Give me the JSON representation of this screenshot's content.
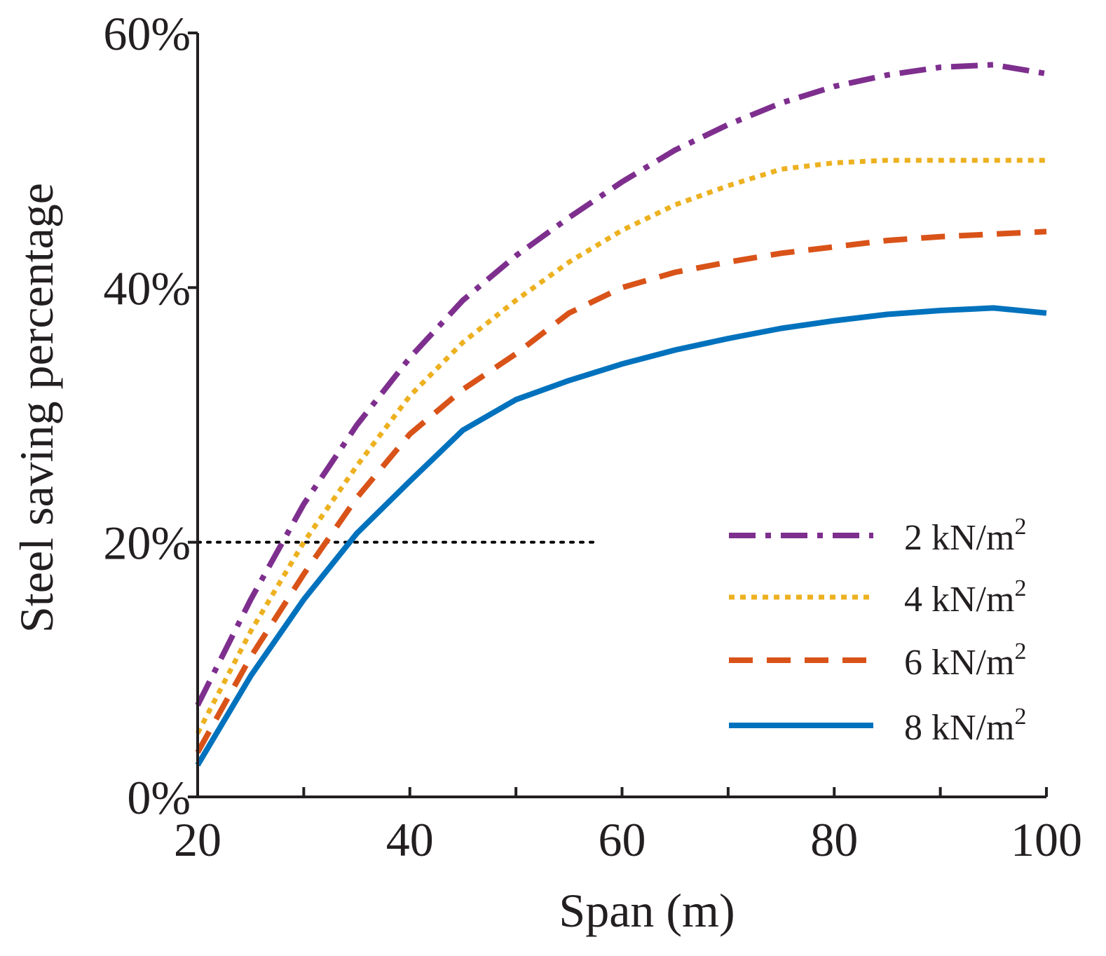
{
  "chart_data": {
    "type": "line",
    "xlabel": "Span (m)",
    "ylabel": "Steel saving percentage",
    "xlim": [
      20,
      100
    ],
    "ylim": [
      0,
      0.6
    ],
    "xticks": [
      20,
      40,
      60,
      80,
      100
    ],
    "xtick_labels": [
      "20",
      "40",
      "60",
      "80",
      "100"
    ],
    "yticks": [
      0,
      0.2,
      0.4,
      0.6
    ],
    "ytick_labels": [
      "0%",
      "20%",
      "40%",
      "60%"
    ],
    "x_minor_ticks": [
      30,
      50,
      70,
      90
    ],
    "grid": false,
    "legend_position": "bottom-right",
    "reference_line": {
      "y": 0.2,
      "x_from": 20,
      "x_to": 57.5,
      "style": "dotted",
      "color": "#000000"
    },
    "series": [
      {
        "name": "2 kN/m",
        "superscript": "2",
        "color": "#7e2f8e",
        "style": "dashdot",
        "x": [
          20,
          25,
          30,
          35,
          40,
          45,
          50,
          55,
          60,
          65,
          70,
          75,
          80,
          85,
          90,
          95,
          100
        ],
        "values": [
          0.072,
          0.155,
          0.23,
          0.292,
          0.345,
          0.39,
          0.425,
          0.455,
          0.483,
          0.508,
          0.528,
          0.545,
          0.558,
          0.567,
          0.573,
          0.575,
          0.568
        ]
      },
      {
        "name": "4 kN/m",
        "superscript": "2",
        "color": "#edb120",
        "style": "dotted",
        "x": [
          20,
          25,
          30,
          35,
          40,
          45,
          50,
          55,
          60,
          65,
          70,
          75,
          80,
          85,
          90,
          95,
          100
        ],
        "values": [
          0.05,
          0.13,
          0.2,
          0.26,
          0.315,
          0.357,
          0.39,
          0.42,
          0.445,
          0.465,
          0.48,
          0.493,
          0.498,
          0.5,
          0.5,
          0.5,
          0.5
        ]
      },
      {
        "name": "6 kN/m",
        "superscript": "2",
        "color": "#d95319",
        "style": "dashed",
        "x": [
          20,
          25,
          30,
          35,
          40,
          45,
          50,
          55,
          60,
          65,
          70,
          75,
          80,
          85,
          90,
          95,
          100
        ],
        "values": [
          0.035,
          0.11,
          0.175,
          0.235,
          0.285,
          0.32,
          0.348,
          0.38,
          0.4,
          0.412,
          0.42,
          0.427,
          0.432,
          0.437,
          0.44,
          0.442,
          0.444
        ]
      },
      {
        "name": "8 kN/m",
        "superscript": "2",
        "color": "#0072bd",
        "style": "solid",
        "x": [
          20,
          25,
          30,
          35,
          40,
          45,
          50,
          55,
          60,
          65,
          70,
          75,
          80,
          85,
          90,
          95,
          100
        ],
        "values": [
          0.025,
          0.095,
          0.155,
          0.207,
          0.248,
          0.288,
          0.312,
          0.327,
          0.34,
          0.351,
          0.36,
          0.368,
          0.374,
          0.379,
          0.382,
          0.384,
          0.38
        ]
      }
    ]
  }
}
